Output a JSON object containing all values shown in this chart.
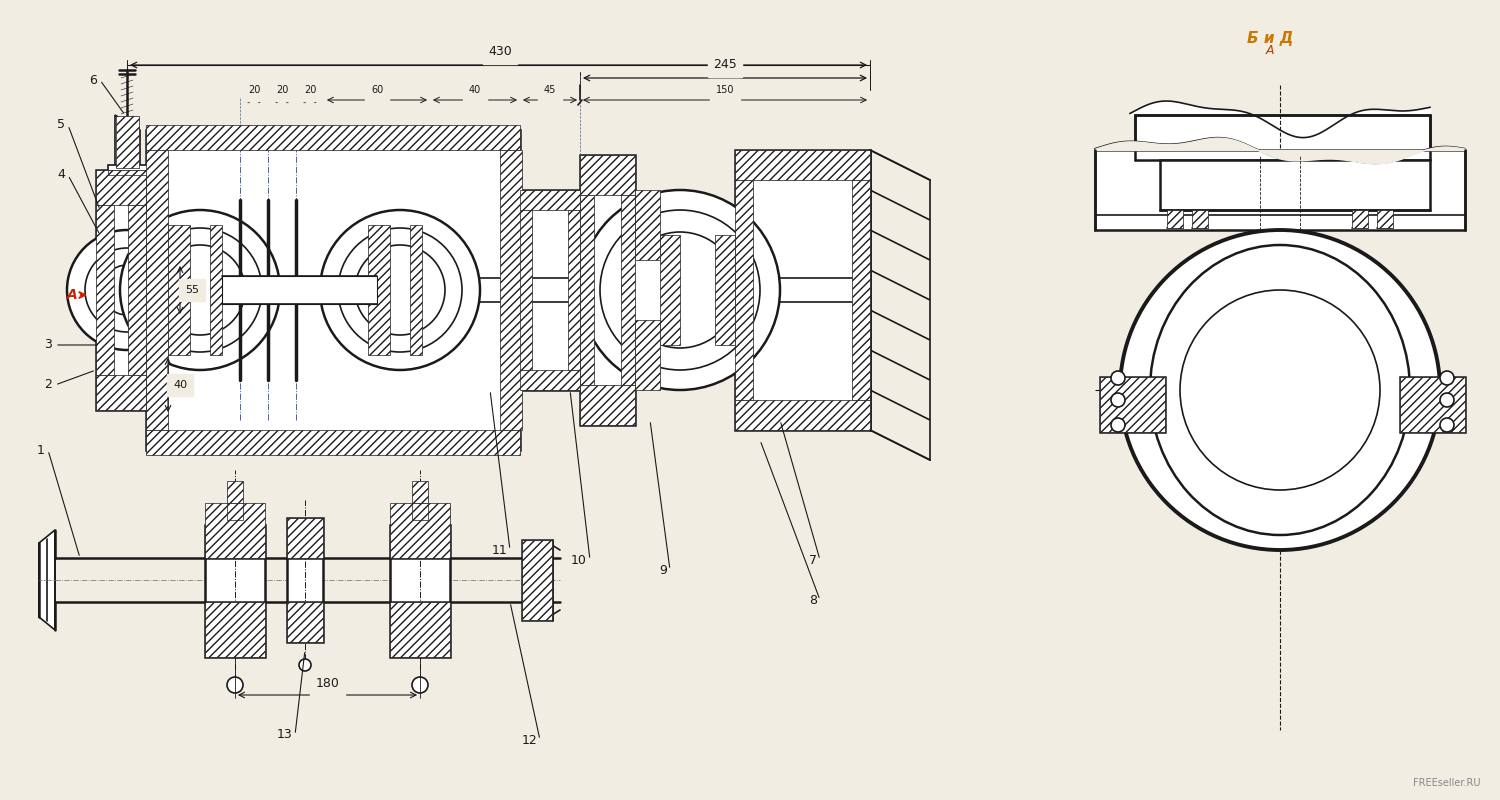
{
  "bg_color": "#f2ede3",
  "line_color": "#1a1a1a",
  "dim_color": "#111111",
  "blue_line": "#4466aa",
  "red_color": "#cc2200",
  "orange_color": "#cc7700",
  "gray_color": "#888888",
  "watermark": "FREEseller.RU",
  "dim_430": "430",
  "dim_245": "245",
  "dim_150": "150",
  "dim_60": "60",
  "dim_45": "45",
  "dim_40": "40",
  "dim_20": "20",
  "dim_55": "55",
  "dim_40b": "40",
  "dim_180": "180",
  "view_label": "Бид А",
  "label_A": "A",
  "parts": [
    "1",
    "2",
    "3",
    "4",
    "5",
    "6",
    "7",
    "8",
    "9",
    "10",
    "11",
    "12",
    "13"
  ]
}
